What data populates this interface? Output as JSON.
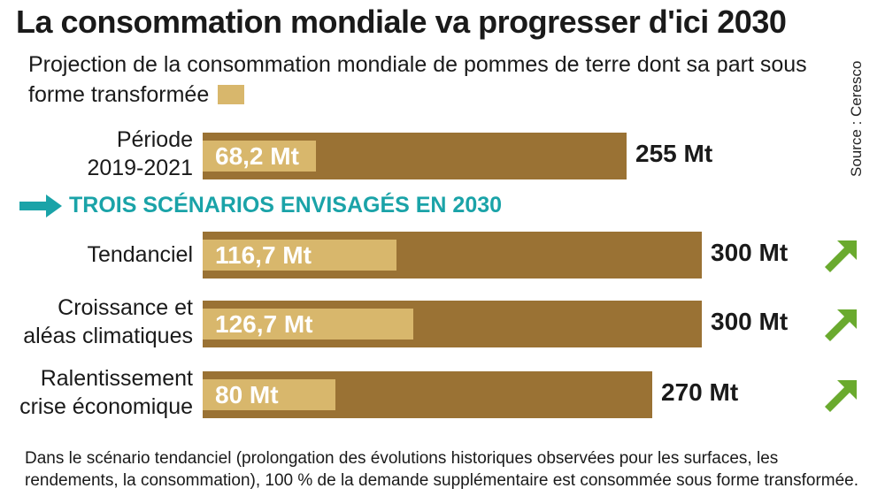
{
  "title": "La consommation mondiale va progresser d'ici 2030",
  "subtitle": "Projection de la consommation mondiale de pommes de terre dont sa part sous forme transformée",
  "source": "Source : Ceresco",
  "scenario_header": "TROIS SCÉNARIOS ENVISAGÉS EN 2030",
  "footnote": "Dans le scénario tendanciel (prolongation des évolutions historiques observées pour les surfaces, les rendements, la consommation), 100 % de la demande supplémentaire est consommée sous forme transformée.",
  "colors": {
    "total": "#9a7234",
    "transformed": "#d8b76c",
    "accent": "#1aa3a8",
    "trend": "#6aaa2e"
  },
  "chart_data": {
    "type": "bar",
    "orientation": "horizontal",
    "unit": "Mt",
    "categories": [
      "Période 2019-2021",
      "Tendanciel",
      "Croissance et aléas climatiques",
      "Ralentissement crise économique"
    ],
    "series": [
      {
        "name": "",
        "values": [
          255,
          300,
          300,
          270
        ]
      },
      {
        "name": "sous forme transformée",
        "values": [
          68.2,
          116.7,
          126.7,
          80
        ]
      }
    ],
    "rows": [
      {
        "label_lines": [
          "Période",
          "2019-2021"
        ],
        "total": 255,
        "transformed": 68.2,
        "total_label": "255 Mt",
        "transformed_label": "68,2 Mt",
        "trend": ""
      },
      {
        "label_lines": [
          "Tendanciel"
        ],
        "total": 300,
        "transformed": 116.7,
        "total_label": "300 Mt",
        "transformed_label": "116,7 Mt",
        "trend": "up-arrow-icon"
      },
      {
        "label_lines": [
          "Croissance et",
          "aléas climatiques"
        ],
        "total": 300,
        "transformed": 126.7,
        "total_label": "300 Mt",
        "transformed_label": "126,7 Mt",
        "trend": "up-arrow-icon"
      },
      {
        "label_lines": [
          "Ralentissement",
          "crise économique"
        ],
        "total": 270,
        "transformed": 80,
        "total_label": "270 Mt",
        "transformed_label": "80 Mt",
        "trend": "up-arrow-icon"
      }
    ],
    "grid": false,
    "legend": "inline-subtitle"
  }
}
